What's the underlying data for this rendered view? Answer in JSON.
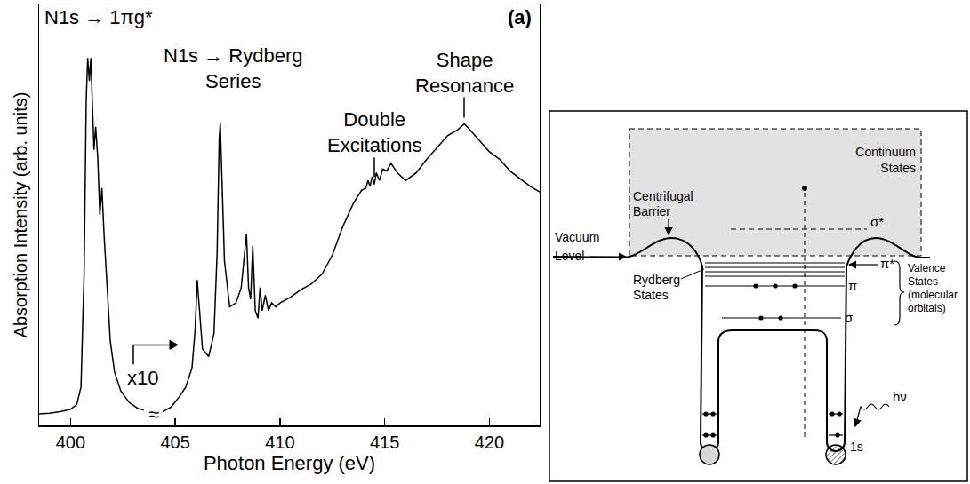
{
  "chart_data": {
    "type": "line",
    "xlabel": "Photon Energy (eV)",
    "ylabel": "Absorption Intensity (arb. units)",
    "x": [
      398.5,
      399.0,
      399.5,
      400.0,
      400.3,
      400.5,
      400.65,
      400.75,
      400.82,
      400.9,
      400.97,
      401.05,
      401.12,
      401.2,
      401.3,
      401.4,
      401.5,
      401.6,
      401.75,
      401.9,
      402.1,
      402.4,
      402.8,
      403.2,
      403.5,
      404.0,
      404.4,
      404.8,
      405.2,
      405.5,
      405.8,
      405.95,
      406.05,
      406.15,
      406.3,
      406.6,
      406.85,
      407.0,
      407.1,
      407.15,
      407.22,
      407.35,
      407.6,
      407.9,
      408.15,
      408.3,
      408.4,
      408.5,
      408.6,
      408.7,
      408.82,
      408.95,
      409.05,
      409.15,
      409.3,
      409.45,
      409.6,
      409.8,
      410.0,
      410.5,
      411.0,
      411.5,
      412.0,
      412.5,
      413.0,
      413.5,
      413.9,
      414.1,
      414.2,
      414.3,
      414.4,
      414.5,
      414.6,
      414.75,
      414.9,
      415.1,
      415.3,
      415.6,
      416.0,
      416.5,
      417.0,
      417.5,
      418.0,
      418.5,
      418.8,
      419.0,
      419.5,
      420.0,
      420.5,
      421.0,
      421.5,
      422.0,
      422.4
    ],
    "values": [
      3.0,
      3.2,
      3.6,
      4.2,
      5.5,
      10,
      40,
      85,
      96,
      90,
      96,
      85,
      72,
      78,
      70,
      55,
      62,
      50,
      35,
      22,
      14,
      9,
      6,
      4.5,
      4.0,
      null,
      3.6,
      4.8,
      7.5,
      10,
      15,
      25,
      38,
      30,
      20,
      18,
      24,
      45,
      75,
      79,
      65,
      43,
      31,
      32,
      36,
      45,
      50,
      36,
      33,
      47,
      30,
      28,
      36,
      30,
      34,
      30,
      32,
      31,
      32,
      33.5,
      35.5,
      37,
      39.5,
      44.5,
      52,
      58,
      61.5,
      62,
      64,
      62.5,
      65,
      63,
      66,
      64,
      67,
      66.5,
      68.5,
      66,
      64,
      66,
      69.5,
      72.6,
      75.7,
      77.3,
      78.8,
      77.7,
      74.6,
      71.5,
      69.5,
      66.4,
      64.3,
      62.3,
      61
    ],
    "color": "#000000",
    "xlim": [
      398.5,
      422.4
    ],
    "xticks": [
      400,
      405,
      410,
      415,
      420
    ],
    "ylim": [
      0,
      110
    ],
    "tick_labels": "x",
    "grid": false,
    "annotations": [
      "N1s → 1πg*",
      "N1s → Rydberg Series",
      "Double Excitations",
      "Shape Resonance",
      "x10",
      "≈",
      "(a)"
    ]
  },
  "diagram": {
    "continuum": "Continuum States",
    "barrier": "Centrifugal Barrier",
    "vacuum": "Vacuum Level",
    "rydberg": "Rydberg States",
    "sigma_star": "σ*",
    "pi_star": "π*",
    "pi": "π",
    "sigma": "σ",
    "valence": "Valence States (molecular orbitals)",
    "photon": "hν",
    "core": "1s"
  }
}
